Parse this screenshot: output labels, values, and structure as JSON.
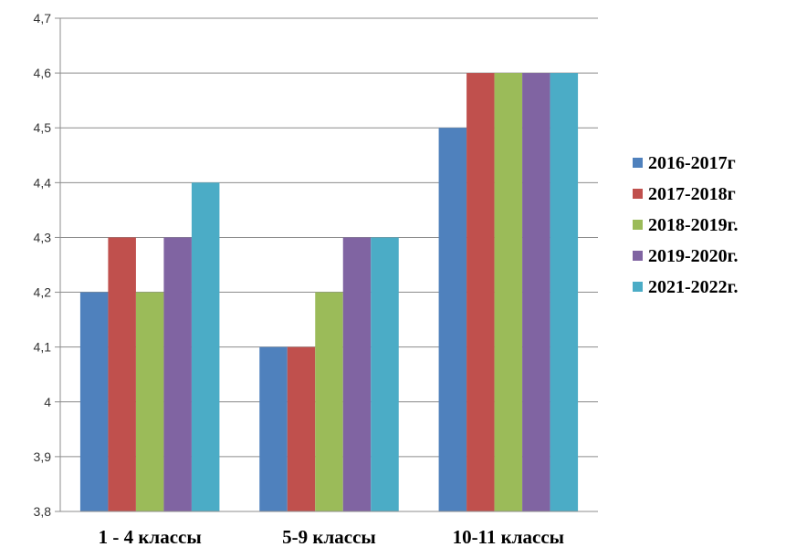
{
  "chart_data": {
    "type": "bar",
    "categories": [
      "1 - 4 классы",
      "5-9 классы",
      "10-11 классы"
    ],
    "series": [
      {
        "name": "2016-2017г",
        "color": "#4F81BD",
        "values": [
          4.2,
          4.1,
          4.5
        ]
      },
      {
        "name": "2017-2018г",
        "color": "#C0504D",
        "values": [
          4.3,
          4.1,
          4.6
        ]
      },
      {
        "name": "2018-2019г.",
        "color": "#9BBB59",
        "values": [
          4.2,
          4.2,
          4.6
        ]
      },
      {
        "name": "2019-2020г.",
        "color": "#8064A2",
        "values": [
          4.3,
          4.3,
          4.6
        ]
      },
      {
        "name": "2021-2022г.",
        "color": "#4BACC6",
        "values": [
          4.4,
          4.3,
          4.6
        ]
      }
    ],
    "ylim": [
      3.8,
      4.7
    ],
    "yticks": [
      "3,8",
      "3,9",
      "4",
      "4,1",
      "4,2",
      "4,3",
      "4,4",
      "4,5",
      "4,6",
      "4,7"
    ],
    "grid": true,
    "legend": "right",
    "title": "",
    "xlabel": "",
    "ylabel": ""
  }
}
